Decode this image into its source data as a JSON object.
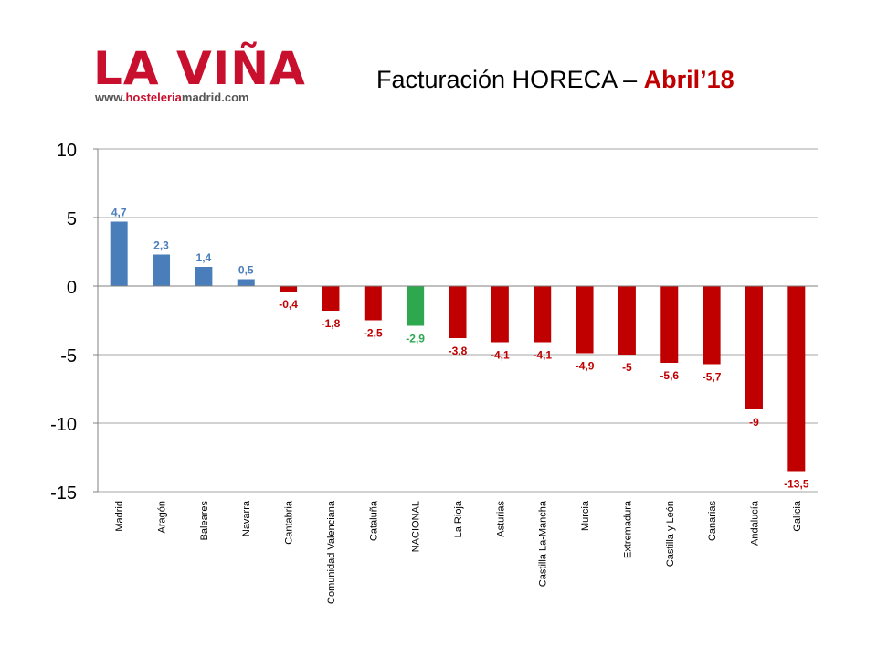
{
  "logo": {
    "name": "LA VIÑA",
    "url_prefix": "www.",
    "url_highlight": "hosteleria",
    "url_suffix": "madrid.com"
  },
  "title": {
    "main": "Facturación HORECA – ",
    "highlight": "Abril’18"
  },
  "colors": {
    "positive": "#4a7ebb",
    "negative": "#c00000",
    "national": "#2ea84f",
    "grid": "#a6a6a6"
  },
  "chart_data": {
    "type": "bar",
    "title": "Facturación HORECA – Abril’18",
    "xlabel": "",
    "ylabel": "",
    "ylim": [
      -15,
      10
    ],
    "yticks": [
      "10",
      "5",
      "0",
      "-5",
      "-10",
      "-15"
    ],
    "grid": true,
    "legend": "none",
    "categories": [
      "Madrid",
      "Aragón",
      "Baleares",
      "Navarra",
      "Cantabria",
      "Comunidad Valenciana",
      "Cataluña",
      "NACIONAL",
      "La Rioja",
      "Asturias",
      "Castilla La-Mancha",
      "Murcia",
      "Extremadura",
      "Castilla y León",
      "Canarias",
      "Andalucía",
      "Galicia"
    ],
    "values": [
      4.7,
      2.3,
      1.4,
      0.5,
      -0.4,
      -1.8,
      -2.5,
      -2.9,
      -3.8,
      -4.1,
      -4.1,
      -4.9,
      -5,
      -5.6,
      -5.7,
      -9,
      -13.5
    ],
    "labels": [
      "4,7",
      "2,3",
      "1,4",
      "0,5",
      "-0,4",
      "-1,8",
      "-2,5",
      "-2,9",
      "-3,8",
      "-4,1",
      "-4,1",
      "-4,9",
      "-5",
      "-5,6",
      "-5,7",
      "-9",
      "-13,5"
    ],
    "highlight_category": "NACIONAL"
  }
}
